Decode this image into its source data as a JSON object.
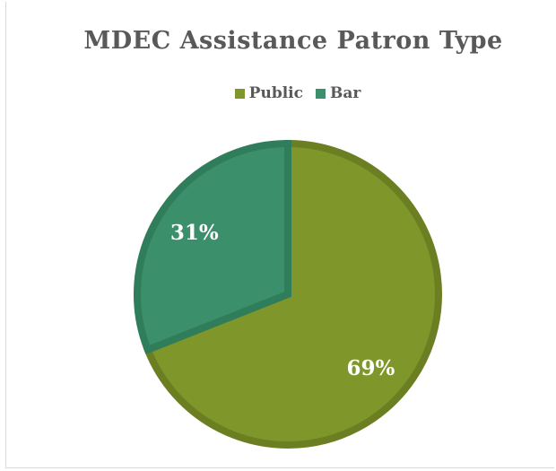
{
  "chart_data": {
    "type": "pie",
    "title": "MDEC Assistance Patron Type",
    "categories": [
      "Public",
      "Bar"
    ],
    "values": [
      69,
      31
    ],
    "data_labels": [
      "69%",
      "31%"
    ],
    "colors": [
      "#7f962a",
      "#3b8f6b"
    ],
    "border_colors": [
      "#6b7f22",
      "#2f7d5a"
    ],
    "legend_placement": "top"
  }
}
